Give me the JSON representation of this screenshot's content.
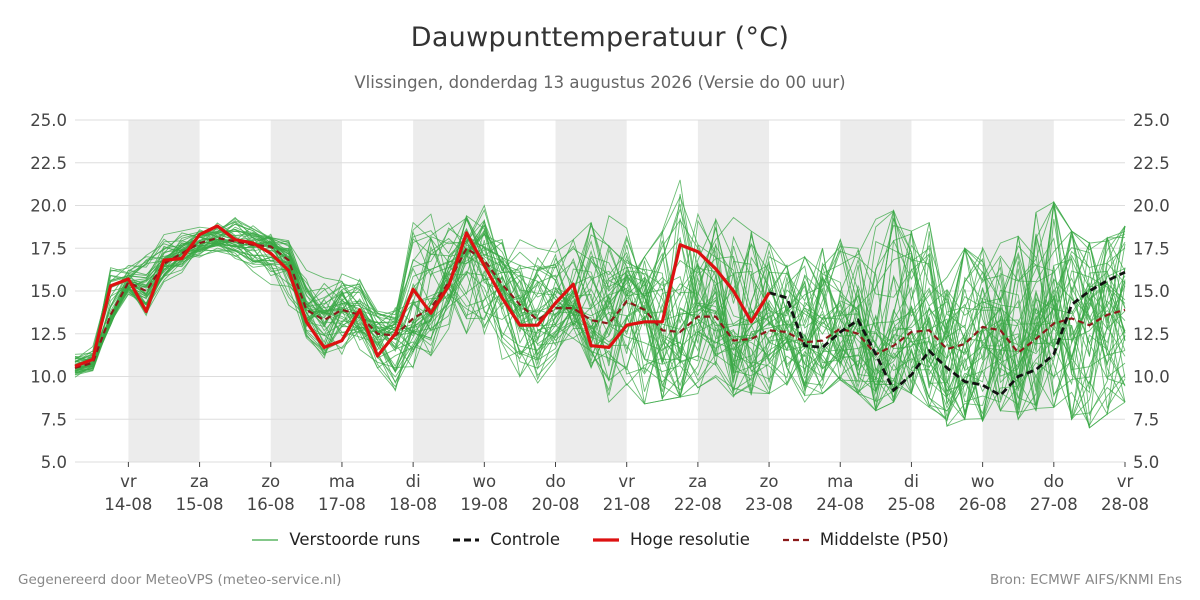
{
  "header": {
    "title": "Dauwpunttemperatuur (°C)",
    "subtitle": "Vlissingen, donderdag 13 augustus 2026 (Versie do 00 uur)"
  },
  "footer": {
    "left": "Gegenereerd door MeteoVPS (meteo-service.nl)",
    "right": "Bron: ECMWF AIFS/KNMI Ens"
  },
  "legend": {
    "ensemble": "Verstoorde runs",
    "control": "Controle",
    "hires": "Hoge resolutie",
    "median": "Middelste (P50)"
  },
  "colors": {
    "ensemble": "#3aa845",
    "control": "#111111",
    "hires": "#dd1111",
    "median": "#8b1a1a",
    "weekend_shade": "#ececec",
    "grid": "#dddddd"
  },
  "chart_data": {
    "type": "line",
    "title": "Dauwpunttemperatuur (°C)",
    "subtitle": "Vlissingen, donderdag 13 augustus 2026 (Versie do 00 uur)",
    "ylim": [
      5.0,
      25.0
    ],
    "yticks": [
      "5.0",
      "7.5",
      "10.0",
      "12.5",
      "15.0",
      "17.5",
      "20.0",
      "22.5",
      "25.0"
    ],
    "y_axis_both_sides": true,
    "grid": true,
    "legend_position": "bottom",
    "x_start_day": 13.25,
    "x_end_day": 28.0,
    "x_ticks": [
      {
        "day": 14,
        "weekday": "vr",
        "date": "14-08"
      },
      {
        "day": 15,
        "weekday": "za",
        "date": "15-08"
      },
      {
        "day": 16,
        "weekday": "zo",
        "date": "16-08"
      },
      {
        "day": 17,
        "weekday": "ma",
        "date": "17-08"
      },
      {
        "day": 18,
        "weekday": "di",
        "date": "18-08"
      },
      {
        "day": 19,
        "weekday": "wo",
        "date": "19-08"
      },
      {
        "day": 20,
        "weekday": "do",
        "date": "20-08"
      },
      {
        "day": 21,
        "weekday": "vr",
        "date": "21-08"
      },
      {
        "day": 22,
        "weekday": "za",
        "date": "22-08"
      },
      {
        "day": 23,
        "weekday": "zo",
        "date": "23-08"
      },
      {
        "day": 24,
        "weekday": "ma",
        "date": "24-08"
      },
      {
        "day": 25,
        "weekday": "di",
        "date": "25-08"
      },
      {
        "day": 26,
        "weekday": "wo",
        "date": "26-08"
      },
      {
        "day": 27,
        "weekday": "do",
        "date": "27-08"
      },
      {
        "day": 28,
        "weekday": "vr",
        "date": "28-08"
      }
    ],
    "shaded_days": [
      [
        14,
        15
      ],
      [
        16,
        17
      ],
      [
        18,
        19
      ],
      [
        20,
        21
      ],
      [
        22,
        23
      ],
      [
        24,
        25
      ],
      [
        26,
        27
      ]
    ],
    "hires": {
      "name": "Hoge resolutie",
      "x": [
        13.25,
        13.5,
        13.75,
        14.0,
        14.25,
        14.5,
        14.75,
        15.0,
        15.25,
        15.5,
        15.75,
        16.0,
        16.25,
        16.5,
        16.75,
        17.0,
        17.25,
        17.5,
        17.75,
        18.0,
        18.25,
        18.5,
        18.75,
        19.0,
        19.25,
        19.5,
        19.75,
        20.0,
        20.25,
        20.5,
        20.75,
        21.0,
        21.25,
        21.5,
        21.75,
        22.0,
        22.25,
        22.5,
        22.75,
        23.0
      ],
      "y": [
        10.6,
        11.0,
        15.3,
        15.7,
        13.8,
        16.8,
        16.9,
        18.3,
        18.8,
        18.0,
        17.8,
        17.2,
        16.2,
        13.2,
        11.7,
        12.1,
        13.9,
        11.2,
        12.5,
        15.1,
        13.7,
        15.3,
        18.4,
        16.5,
        14.6,
        13.0,
        13.0,
        14.3,
        15.4,
        11.8,
        11.7,
        13.0,
        13.2,
        13.2,
        17.7,
        17.3,
        16.3,
        15.0,
        13.2,
        14.9
      ]
    },
    "control": {
      "name": "Controle",
      "x": [
        23.0,
        23.25,
        23.5,
        23.75,
        24.0,
        24.25,
        24.5,
        24.75,
        25.0,
        25.25,
        25.5,
        25.75,
        26.0,
        26.25,
        26.5,
        26.75,
        27.0,
        27.25,
        27.5,
        27.75,
        28.0
      ],
      "y": [
        14.9,
        14.6,
        11.8,
        11.7,
        12.6,
        13.3,
        11.3,
        9.2,
        10.1,
        11.5,
        10.5,
        9.7,
        9.5,
        8.9,
        10.0,
        10.4,
        11.3,
        14.2,
        15.0,
        15.6,
        16.1
      ]
    },
    "median": {
      "name": "Middelste (P50)",
      "x": [
        13.25,
        13.5,
        13.75,
        14.0,
        14.25,
        14.5,
        14.75,
        15.0,
        15.25,
        15.5,
        15.75,
        16.0,
        16.25,
        16.5,
        16.75,
        17.0,
        17.25,
        17.5,
        17.75,
        18.0,
        18.25,
        18.5,
        18.75,
        19.0,
        19.25,
        19.5,
        19.75,
        20.0,
        20.25,
        20.5,
        20.75,
        21.0,
        21.25,
        21.5,
        21.75,
        22.0,
        22.25,
        22.5,
        22.75,
        23.0,
        23.25,
        23.5,
        23.75,
        24.0,
        24.25,
        24.5,
        24.75,
        25.0,
        25.25,
        25.5,
        25.75,
        26.0,
        26.25,
        26.5,
        26.75,
        27.0,
        27.25,
        27.5,
        27.75,
        28.0
      ],
      "y": [
        10.5,
        10.8,
        13.6,
        15.5,
        15.0,
        16.6,
        17.2,
        17.8,
        18.1,
        17.9,
        17.7,
        17.6,
        16.8,
        13.9,
        13.3,
        13.9,
        13.6,
        12.5,
        12.4,
        13.4,
        14.0,
        15.5,
        17.5,
        16.8,
        15.4,
        14.2,
        13.3,
        14.0,
        14.0,
        13.3,
        13.1,
        14.4,
        13.9,
        12.7,
        12.6,
        13.5,
        13.5,
        12.1,
        12.2,
        12.7,
        12.6,
        12.0,
        12.1,
        12.8,
        12.5,
        11.3,
        11.8,
        12.6,
        12.7,
        11.6,
        11.9,
        12.9,
        12.7,
        11.4,
        12.2,
        13.1,
        13.4,
        13.0,
        13.6,
        13.9
      ]
    },
    "ensemble_envelope": {
      "name": "Verstoorde runs",
      "member_count": 50,
      "x": [
        13.25,
        13.5,
        13.75,
        14.0,
        14.25,
        14.5,
        14.75,
        15.0,
        15.25,
        15.5,
        15.75,
        16.0,
        16.25,
        16.5,
        16.75,
        17.0,
        17.25,
        17.5,
        17.75,
        18.0,
        18.25,
        18.5,
        18.75,
        19.0,
        19.25,
        19.5,
        19.75,
        20.0,
        20.25,
        20.5,
        20.75,
        21.0,
        21.25,
        21.5,
        21.75,
        22.0,
        22.25,
        22.5,
        22.75,
        23.0,
        23.25,
        23.5,
        23.75,
        24.0,
        24.25,
        24.5,
        24.75,
        25.0,
        25.25,
        25.5,
        25.75,
        26.0,
        26.25,
        26.5,
        26.75,
        27.0,
        27.25,
        27.5,
        27.75,
        28.0
      ],
      "low": [
        9.9,
        10.2,
        13.0,
        14.6,
        13.1,
        15.2,
        15.8,
        16.8,
        17.0,
        16.8,
        16.0,
        15.2,
        14.0,
        12.0,
        10.5,
        11.0,
        11.5,
        10.5,
        9.0,
        10.5,
        11.0,
        12.0,
        12.5,
        12.5,
        11.0,
        10.0,
        9.5,
        11.0,
        12.0,
        10.5,
        8.5,
        9.5,
        8.4,
        8.6,
        8.8,
        9.0,
        9.5,
        8.8,
        8.9,
        9.0,
        9.5,
        8.5,
        9.0,
        9.8,
        9.0,
        8.0,
        8.5,
        9.0,
        8.2,
        7.1,
        7.5,
        7.4,
        8.0,
        7.5,
        8.0,
        8.2,
        7.5,
        7.0,
        7.8,
        8.5
      ],
      "high": [
        11.6,
        12.0,
        17.6,
        16.8,
        17.8,
        18.6,
        18.8,
        18.9,
        19.3,
        19.5,
        19.0,
        18.7,
        18.0,
        16.5,
        16.0,
        16.2,
        16.0,
        14.0,
        14.5,
        19.0,
        19.5,
        19.0,
        19.9,
        20.0,
        18.5,
        18.0,
        17.5,
        18.6,
        18.0,
        19.0,
        19.4,
        19.0,
        17.0,
        18.5,
        21.5,
        19.5,
        19.2,
        19.3,
        18.5,
        17.8,
        16.5,
        17.0,
        17.5,
        18.0,
        17.5,
        19.2,
        19.7,
        18.5,
        19.0,
        17.0,
        17.5,
        17.7,
        17.8,
        18.2,
        19.6,
        20.2,
        18.5,
        17.8,
        18.1,
        18.8
      ]
    }
  }
}
